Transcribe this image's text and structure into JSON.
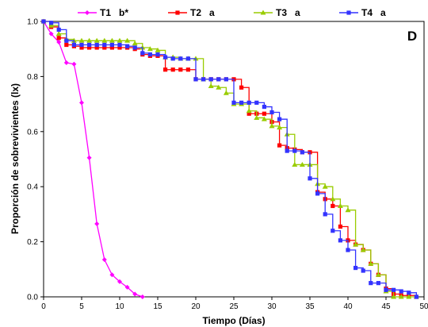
{
  "chart_data": {
    "type": "line",
    "panel_label": "D",
    "xlabel": "Tiempo (Días)",
    "ylabel": "Proporción de sobrevivientes (lx)",
    "xlim": [
      0,
      50
    ],
    "ylim": [
      0,
      1.0
    ],
    "xticks": [
      0,
      5,
      10,
      15,
      20,
      25,
      30,
      35,
      40,
      45,
      50
    ],
    "yticks": [
      0.0,
      0.2,
      0.4,
      0.6,
      0.8,
      1.0
    ],
    "xtick_labels": [
      "0",
      "5",
      "10",
      "15",
      "20",
      "25",
      "30",
      "35",
      "40",
      "45",
      "50"
    ],
    "ytick_labels": [
      "0.0",
      "0.2",
      "0.4",
      "0.6",
      "0.8",
      "1.0"
    ],
    "grid": false,
    "legend_position": "top",
    "series": [
      {
        "name": "T1",
        "sig": "b*",
        "color": "#ff00ff",
        "marker": "diamond",
        "step": false,
        "x": [
          0,
          1,
          2,
          3,
          4,
          5,
          6,
          7,
          8,
          9,
          10,
          11,
          12,
          13
        ],
        "y": [
          1.0,
          0.955,
          0.925,
          0.85,
          0.845,
          0.705,
          0.505,
          0.265,
          0.135,
          0.08,
          0.055,
          0.035,
          0.01,
          0.0
        ]
      },
      {
        "name": "T2",
        "sig": "a",
        "color": "#ff0000",
        "marker": "square",
        "step": true,
        "x": [
          0,
          1,
          2,
          3,
          4,
          5,
          6,
          7,
          8,
          9,
          10,
          11,
          12,
          13,
          14,
          15,
          16,
          17,
          18,
          19,
          20,
          21,
          22,
          23,
          24,
          25,
          26,
          27,
          28,
          29,
          30,
          31,
          32,
          33,
          34,
          35,
          36,
          37,
          38,
          39,
          40,
          41,
          42,
          43,
          44,
          45,
          46,
          47,
          48,
          49
        ],
        "y": [
          1.0,
          0.98,
          0.94,
          0.915,
          0.91,
          0.905,
          0.905,
          0.905,
          0.905,
          0.905,
          0.905,
          0.905,
          0.9,
          0.88,
          0.875,
          0.875,
          0.825,
          0.825,
          0.825,
          0.825,
          0.79,
          0.79,
          0.79,
          0.79,
          0.79,
          0.79,
          0.76,
          0.665,
          0.665,
          0.665,
          0.635,
          0.55,
          0.54,
          0.535,
          0.525,
          0.525,
          0.38,
          0.355,
          0.33,
          0.255,
          0.205,
          0.19,
          0.17,
          0.12,
          0.08,
          0.03,
          0.01,
          0.005,
          0.005,
          0.0
        ]
      },
      {
        "name": "T3",
        "sig": "a",
        "color": "#99cc00",
        "marker": "triangle",
        "step": true,
        "x": [
          0,
          1,
          2,
          3,
          4,
          5,
          6,
          7,
          8,
          9,
          10,
          11,
          12,
          13,
          14,
          15,
          16,
          17,
          18,
          19,
          20,
          21,
          22,
          23,
          24,
          25,
          26,
          27,
          28,
          29,
          30,
          31,
          32,
          33,
          34,
          35,
          36,
          37,
          38,
          39,
          40,
          41,
          42,
          43,
          44,
          45,
          46,
          47,
          48,
          49
        ],
        "y": [
          1.0,
          0.985,
          0.955,
          0.935,
          0.93,
          0.93,
          0.93,
          0.93,
          0.93,
          0.93,
          0.93,
          0.93,
          0.92,
          0.905,
          0.9,
          0.895,
          0.87,
          0.87,
          0.865,
          0.865,
          0.865,
          0.79,
          0.765,
          0.76,
          0.74,
          0.7,
          0.7,
          0.675,
          0.65,
          0.645,
          0.62,
          0.615,
          0.59,
          0.48,
          0.48,
          0.48,
          0.41,
          0.4,
          0.355,
          0.33,
          0.315,
          0.19,
          0.17,
          0.12,
          0.08,
          0.02,
          0.0,
          0.0,
          0.0,
          0.0
        ]
      },
      {
        "name": "T4",
        "sig": "a",
        "color": "#3333ff",
        "marker": "square",
        "step": true,
        "x": [
          0,
          1,
          2,
          3,
          4,
          5,
          6,
          7,
          8,
          9,
          10,
          11,
          12,
          13,
          14,
          15,
          16,
          17,
          18,
          19,
          20,
          21,
          22,
          23,
          24,
          25,
          26,
          27,
          28,
          29,
          30,
          31,
          32,
          33,
          34,
          35,
          36,
          37,
          38,
          39,
          40,
          41,
          42,
          43,
          44,
          45,
          46,
          47,
          48,
          49
        ],
        "y": [
          1.0,
          0.995,
          0.97,
          0.93,
          0.915,
          0.915,
          0.915,
          0.915,
          0.915,
          0.915,
          0.915,
          0.91,
          0.905,
          0.885,
          0.88,
          0.88,
          0.87,
          0.865,
          0.865,
          0.865,
          0.79,
          0.79,
          0.79,
          0.79,
          0.79,
          0.705,
          0.705,
          0.705,
          0.705,
          0.69,
          0.67,
          0.645,
          0.53,
          0.53,
          0.525,
          0.43,
          0.375,
          0.3,
          0.24,
          0.205,
          0.17,
          0.105,
          0.095,
          0.05,
          0.05,
          0.025,
          0.025,
          0.02,
          0.015,
          0.0
        ]
      }
    ]
  }
}
